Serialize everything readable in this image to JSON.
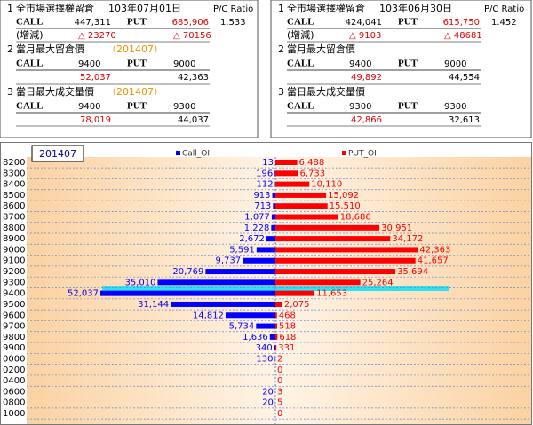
{
  "panels": [
    {
      "number": "1",
      "header": "全市場選擇權留倉",
      "date": "103年07月01日",
      "pc_label": "P/C Ratio",
      "call_label": "CALL",
      "call_oi": "447,311",
      "put_label": "PUT",
      "put_oi": "685,906",
      "pc_ratio": "1.533",
      "change_label": "(增減)",
      "call_change": "△ 23270",
      "put_change": "△ 70156",
      "section2": {
        "number": "2",
        "title": "當月最大留倉價",
        "month": "（201407）",
        "call_label": "CALL",
        "call_strike": "9400",
        "put_label": "PUT",
        "put_strike": "9000",
        "call_value": "52,037",
        "put_value": "42,363"
      },
      "section3": {
        "number": "3",
        "title": "當日最大成交量價",
        "month": "（201407）",
        "call_label": "CALL",
        "call_strike": "9400",
        "put_label": "PUT",
        "put_strike": "9300",
        "call_value": "78,019",
        "put_value": "44,037"
      }
    },
    {
      "number": "1",
      "header": "全市場選擇權留倉",
      "date": "103年06月30日",
      "pc_label": "P/C Ratio",
      "call_label": "CALL",
      "call_oi": "424,041",
      "put_label": "PUT",
      "put_oi": "615,750",
      "pc_ratio": "1.452",
      "change_label": "(增減)",
      "call_change": "△ 9103",
      "put_change": "△ 48681",
      "section2": {
        "number": "2",
        "title": "當月最大留倉價",
        "call_label": "CALL",
        "call_strike": "9400",
        "put_label": "PUT",
        "put_strike": "9000",
        "call_value": "49,892",
        "put_value": "44,554"
      },
      "section3": {
        "number": "3",
        "title": "當日最大成交量價",
        "call_label": "CALL",
        "call_strike": "9300",
        "put_label": "PUT",
        "put_strike": "9300",
        "call_value": "42,866",
        "put_value": "32,613"
      }
    }
  ],
  "chart_data": {
    "type": "butterfly",
    "title": "201407",
    "categories": [
      "8200",
      "8300",
      "8400",
      "8500",
      "8600",
      "8700",
      "8800",
      "8900",
      "9000",
      "9100",
      "9200",
      "9300",
      "9400",
      "9500",
      "9600",
      "9700",
      "9800",
      "9900",
      "0000",
      "0200",
      "0400",
      "0600",
      "0800",
      "1000"
    ],
    "series": [
      {
        "name": "Call_OI",
        "color": "#0000ff",
        "values": [
          13,
          196,
          112,
          913,
          713,
          1077,
          1228,
          2672,
          5591,
          9737,
          20769,
          35010,
          52037,
          31144,
          14812,
          5734,
          1636,
          340,
          130,
          null,
          null,
          20,
          20,
          null
        ],
        "value_labels": [
          "13",
          "196",
          "112",
          "913",
          "713",
          "1,077",
          "1,228",
          "2,672",
          "5,591",
          "9,737",
          "20,769",
          "35,010",
          "52,037",
          "31,144",
          "14,812",
          "5,734",
          "1,636",
          "340",
          "130",
          null,
          null,
          "20",
          "20",
          null
        ]
      },
      {
        "name": "PUT_OI",
        "color": "#ff0000",
        "values": [
          6488,
          6733,
          10110,
          15092,
          15510,
          18686,
          30951,
          34172,
          42363,
          41657,
          35694,
          25264,
          11653,
          2075,
          468,
          518,
          618,
          331,
          2,
          0,
          0,
          3,
          5,
          0
        ],
        "value_labels": [
          "6,488",
          "6,733",
          "10,110",
          "15,092",
          "15,510",
          "18,686",
          "30,951",
          "34,172",
          "42,363",
          "41,657",
          "35,694",
          "25,264",
          "11,653",
          "2,075",
          "468",
          "518",
          "618",
          "331",
          "2",
          "0",
          "0",
          "3",
          "5",
          "0"
        ]
      }
    ]
  }
}
